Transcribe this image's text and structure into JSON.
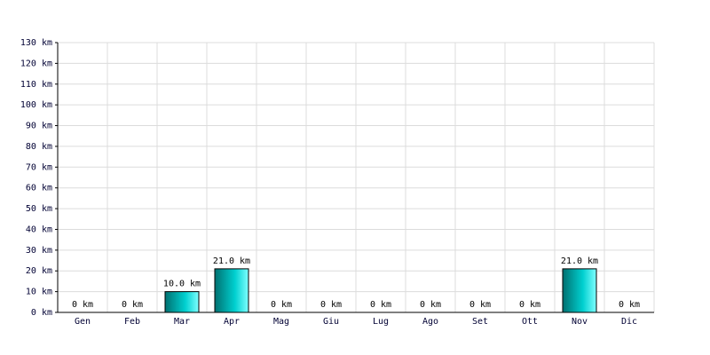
{
  "chart_data": {
    "type": "bar",
    "categories": [
      "Gen",
      "Feb",
      "Mar",
      "Apr",
      "Mag",
      "Giu",
      "Lug",
      "Ago",
      "Set",
      "Ott",
      "Nov",
      "Dic"
    ],
    "values": [
      0,
      0,
      10,
      21,
      0,
      0,
      0,
      0,
      0,
      0,
      21,
      0
    ],
    "value_labels": [
      "0 km",
      "0 km",
      "10.0 km",
      "21.0 km",
      "0 km",
      "0 km",
      "0 km",
      "0 km",
      "0 km",
      "0 km",
      "21.0 km",
      "0 km"
    ],
    "color": "#00d0d0",
    "ylim": [
      0,
      130
    ],
    "yticks": [
      {
        "value": 0,
        "label": "0 km"
      },
      {
        "value": 10,
        "label": "10 km"
      },
      {
        "value": 20,
        "label": "20 km"
      },
      {
        "value": 30,
        "label": "30 km"
      },
      {
        "value": 40,
        "label": "40 km"
      },
      {
        "value": 50,
        "label": "50 km"
      },
      {
        "value": 60,
        "label": "60 km"
      },
      {
        "value": 70,
        "label": "70 km"
      },
      {
        "value": 80,
        "label": "80 km"
      },
      {
        "value": 90,
        "label": "90 km"
      },
      {
        "value": 100,
        "label": "100 km"
      },
      {
        "value": 110,
        "label": "110 km"
      },
      {
        "value": 120,
        "label": "120 km"
      },
      {
        "value": 130,
        "label": "130 km"
      }
    ],
    "grid": true
  }
}
